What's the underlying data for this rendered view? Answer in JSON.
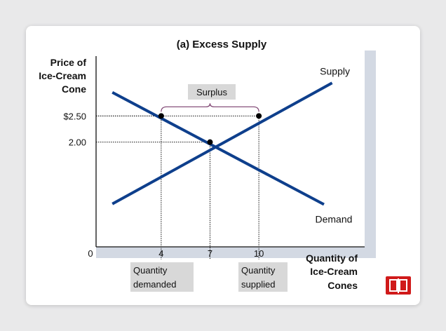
{
  "chart_data": {
    "type": "line",
    "title": "(a) Excess Supply",
    "ylabel": [
      "Price of",
      "Ice-Cream",
      "Cone"
    ],
    "xlabel": [
      "Quantity of",
      "Ice-Cream",
      "Cones"
    ],
    "x_ticks": [
      {
        "value": 0,
        "label": "0"
      },
      {
        "value": 4,
        "label": "4"
      },
      {
        "value": 7,
        "label": "7"
      },
      {
        "value": 10,
        "label": "10"
      }
    ],
    "y_ticks": [
      {
        "value": 2.5,
        "label": "$2.50"
      },
      {
        "value": 2.0,
        "label": "2.00"
      }
    ],
    "xlim": [
      0,
      16.5
    ],
    "ylim": [
      0,
      3.75
    ],
    "series": [
      {
        "name": "Supply",
        "color": "#0e3f8c",
        "x": [
          1,
          14.5
        ],
        "y": [
          0.82,
          3.13
        ]
      },
      {
        "name": "Demand",
        "color": "#0e3f8c",
        "x": [
          1,
          14
        ],
        "y": [
          2.95,
          0.81
        ]
      }
    ],
    "points": [
      {
        "x": 4,
        "y": 2.5
      },
      {
        "x": 7,
        "y": 2.0
      },
      {
        "x": 10,
        "y": 2.5
      }
    ],
    "annotations": {
      "surplus": "Surplus",
      "quantity_demanded": [
        "Quantity",
        "demanded"
      ],
      "quantity_supplied": [
        "Quantity",
        "supplied"
      ]
    },
    "grid": false
  },
  "icon": "red-book-icon",
  "colors": {
    "curve": "#0e3f8c",
    "brace": "#7a3e6d",
    "panel": "#d3d9e3",
    "label_box": "#d8d8d8",
    "icon": "#d01a1a"
  }
}
